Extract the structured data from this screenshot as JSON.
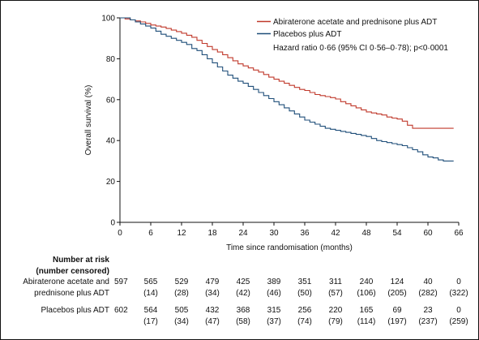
{
  "chart_data": {
    "type": "line",
    "title": "",
    "xlabel": "Time since randomisation (months)",
    "ylabel": "Overall survival (%)",
    "xlim": [
      0,
      66
    ],
    "ylim": [
      0,
      100
    ],
    "x_ticks": [
      0,
      6,
      12,
      18,
      24,
      30,
      36,
      42,
      48,
      54,
      60,
      66
    ],
    "y_ticks": [
      0,
      20,
      40,
      60,
      80,
      100
    ],
    "grid": false,
    "legend_position": "top-right",
    "annotation": "Hazard ratio 0·66 (95% CI 0·56–0·78); p<0·0001",
    "series": [
      {
        "name": "Abiraterone acetate and prednisone plus ADT",
        "color": "#c0392b",
        "x": [
          0,
          1,
          2,
          3,
          4,
          5,
          6,
          7,
          8,
          9,
          10,
          11,
          12,
          13,
          14,
          15,
          16,
          17,
          18,
          19,
          20,
          21,
          22,
          23,
          24,
          25,
          26,
          27,
          28,
          29,
          30,
          31,
          32,
          33,
          34,
          35,
          36,
          37,
          38,
          39,
          40,
          41,
          42,
          43,
          44,
          45,
          46,
          47,
          48,
          49,
          50,
          51,
          52,
          53,
          54,
          55,
          56,
          57,
          58,
          59,
          60,
          61,
          62,
          63,
          65
        ],
        "y": [
          100,
          99.5,
          99,
          98.5,
          98,
          97.3,
          96.5,
          96,
          95.5,
          94.8,
          94,
          93.3,
          92.5,
          91.5,
          90.5,
          89,
          87.5,
          86,
          84.5,
          83.3,
          82,
          80.5,
          79,
          77.5,
          76.5,
          75.5,
          74.5,
          73.5,
          72.3,
          71,
          70,
          69,
          68,
          67,
          66,
          65,
          64.5,
          63.5,
          62.5,
          62,
          61.5,
          61,
          60.3,
          59,
          58,
          57,
          56,
          55,
          54,
          53.5,
          53,
          52.5,
          51.5,
          51,
          50.5,
          49.5,
          47.5,
          46,
          46,
          46,
          46,
          46,
          46,
          46,
          46
        ]
      },
      {
        "name": "Placebos plus ADT",
        "color": "#1f4e79",
        "x": [
          0,
          1,
          2,
          3,
          4,
          5,
          6,
          7,
          8,
          9,
          10,
          11,
          12,
          13,
          14,
          15,
          16,
          17,
          18,
          19,
          20,
          21,
          22,
          23,
          24,
          25,
          26,
          27,
          28,
          29,
          30,
          31,
          32,
          33,
          34,
          35,
          36,
          37,
          38,
          39,
          40,
          41,
          42,
          43,
          44,
          45,
          46,
          47,
          48,
          49,
          50,
          51,
          52,
          53,
          54,
          55,
          56,
          57,
          58,
          59,
          60,
          61,
          62,
          63,
          64,
          65
        ],
        "y": [
          100,
          100,
          99,
          98,
          97,
          96,
          95,
          93.5,
          92,
          91,
          90,
          89,
          88,
          87,
          85,
          84,
          82,
          80,
          78,
          76,
          74,
          72,
          70.5,
          69,
          68,
          66.5,
          65,
          63.5,
          62,
          60.5,
          59,
          57.5,
          56,
          54.5,
          53,
          51.5,
          50,
          49,
          48,
          47,
          46,
          45.5,
          45,
          44.5,
          44,
          43.5,
          43,
          42.5,
          42,
          41,
          40,
          39.5,
          39,
          38.5,
          38,
          37.5,
          36.5,
          35.5,
          34.5,
          33,
          32,
          31.5,
          30.5,
          30,
          30,
          30
        ]
      }
    ],
    "risk_table": {
      "title_line1": "Number at risk",
      "title_line2": "(number censored)",
      "groups": [
        {
          "label_line1": "Abiraterone acetate and",
          "label_line2": "prednisone plus ADT",
          "initial": "597",
          "at_risk": [
            "565",
            "529",
            "479",
            "425",
            "389",
            "351",
            "311",
            "240",
            "124",
            "40",
            "0"
          ],
          "censored": [
            "(14)",
            "(28)",
            "(34)",
            "(42)",
            "(46)",
            "(50)",
            "(57)",
            "(106)",
            "(205)",
            "(282)",
            "(322)"
          ]
        },
        {
          "label_line1": "Placebos plus ADT",
          "label_line2": "",
          "initial": "602",
          "at_risk": [
            "564",
            "505",
            "432",
            "368",
            "315",
            "256",
            "220",
            "165",
            "69",
            "23",
            "0"
          ],
          "censored": [
            "(17)",
            "(34)",
            "(47)",
            "(58)",
            "(37)",
            "(74)",
            "(79)",
            "(114)",
            "(197)",
            "(237)",
            "(259)"
          ]
        }
      ]
    }
  }
}
